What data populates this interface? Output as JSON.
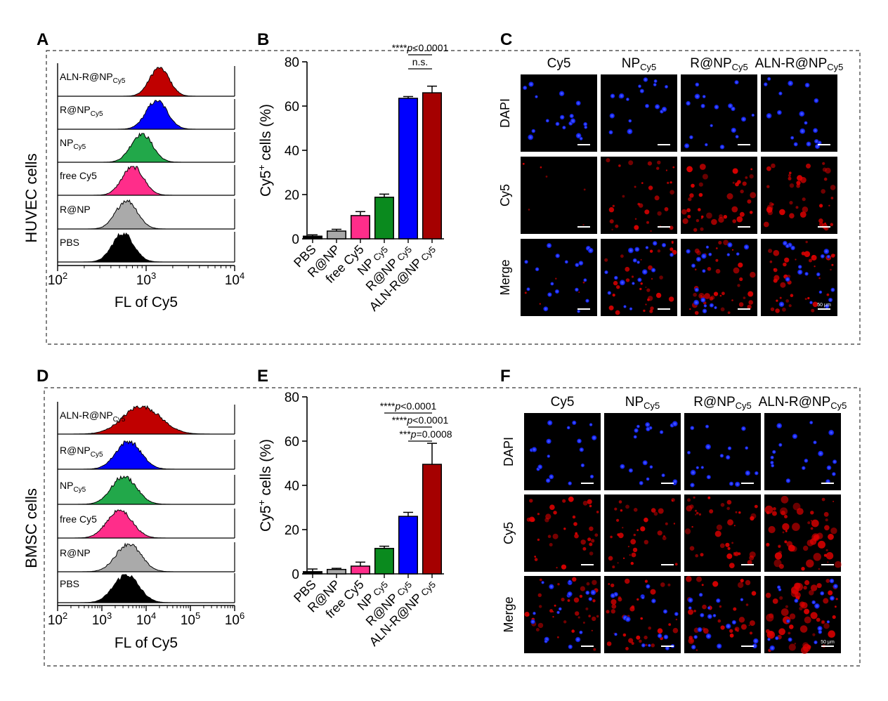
{
  "panel_letters": [
    "A",
    "B",
    "C",
    "D",
    "E",
    "F"
  ],
  "colors": {
    "ALN-R@NP": "#c00000",
    "R@NP_Cy5": "#0000ff",
    "NP_Cy5": "#22a84a",
    "free Cy5": "#ff2d8a",
    "R@NP": "#aaaaaa",
    "PBS": "#000000",
    "bar_ALN": "#a50000",
    "bar_RNPcy5": "#0000ff",
    "bar_NPcy5": "#0a8a1e",
    "bar_free": "#ff2d8a",
    "bar_RNP": "#a8a8a8",
    "bar_PBS": "#000000",
    "dapi": "#1a2cff",
    "cy5": "#e00000"
  },
  "histogram_labels": [
    {
      "main": "ALN-R@NP",
      "sub": "Cy5"
    },
    {
      "main": "R@NP",
      "sub": "Cy5"
    },
    {
      "main": "NP",
      "sub": "Cy5"
    },
    {
      "main": "free Cy5",
      "sub": ""
    },
    {
      "main": "R@NP",
      "sub": ""
    },
    {
      "main": "PBS",
      "sub": ""
    }
  ],
  "micro_cols": [
    {
      "main": "Cy5",
      "sub": ""
    },
    {
      "main": "NP",
      "sub": "Cy5"
    },
    {
      "main": "R@NP",
      "sub": "Cy5"
    },
    {
      "main": "ALN-R@NP",
      "sub": "Cy5"
    }
  ],
  "micro_rows": [
    "DAPI",
    "Cy5",
    "Merge"
  ],
  "scale_label": "50 μm",
  "chart_data": [
    {
      "panel": "A",
      "type": "histogram",
      "cell_label": "HUVEC cells",
      "xlabel": "FL of Cy5",
      "xscale": "log",
      "xlim": [
        100,
        10000
      ],
      "xticks": [
        "10",
        "10",
        "10"
      ],
      "xtick_exp": [
        "2",
        "3",
        "4"
      ],
      "peaks_log10": [
        3.15,
        3.12,
        2.95,
        2.85,
        2.78,
        2.74
      ]
    },
    {
      "panel": "B",
      "type": "bar",
      "ylabel": "Cy5",
      "ylabel_sup": "+",
      "ylabel_rest": " cells (%)",
      "ylim": [
        0,
        80
      ],
      "yticks": [
        "0",
        "20",
        "40",
        "60",
        "80"
      ],
      "categories": [
        "PBS",
        "R@NP",
        "free Cy5",
        "NP",
        "R@NP",
        "ALN-R@NP"
      ],
      "category_subs": [
        "",
        "",
        "",
        "Cy5",
        "Cy5",
        "Cy5"
      ],
      "values": [
        1.2,
        3.5,
        10.5,
        18.8,
        63.5,
        66.0
      ],
      "errors": [
        0.6,
        0.8,
        1.8,
        1.4,
        0.8,
        3.0
      ],
      "annotations": [
        {
          "stars": "****",
          "p": "p",
          "text": "<0.0001",
          "from": 4,
          "to": 5,
          "level": 1
        },
        {
          "stars": "",
          "p": "",
          "text": "n.s.",
          "from": 4,
          "to": 5,
          "level": 0
        }
      ]
    },
    {
      "panel": "D",
      "type": "histogram",
      "cell_label": "BMSC cells",
      "xlabel": "FL of Cy5",
      "xscale": "log",
      "xlim": [
        100,
        1000000
      ],
      "xticks": [
        "10",
        "10",
        "10",
        "10",
        "10"
      ],
      "xtick_exp": [
        "2",
        "3",
        "4",
        "5",
        "6"
      ],
      "peaks_log10": [
        3.9,
        3.6,
        3.5,
        3.4,
        3.6,
        3.55
      ]
    },
    {
      "panel": "E",
      "type": "bar",
      "ylabel": "Cy5",
      "ylabel_sup": "+",
      "ylabel_rest": " cells (%)",
      "ylim": [
        0,
        80
      ],
      "yticks": [
        "0",
        "20",
        "40",
        "60",
        "80"
      ],
      "categories": [
        "PBS",
        "R@NP",
        "free Cy5",
        "NP",
        "R@NP",
        "ALN-R@NP"
      ],
      "category_subs": [
        "",
        "",
        "",
        "Cy5",
        "Cy5",
        "Cy5"
      ],
      "values": [
        1.0,
        2.0,
        3.5,
        11.5,
        26.0,
        49.5
      ],
      "errors": [
        1.2,
        0.5,
        1.8,
        1.0,
        1.8,
        9.5
      ],
      "annotations": [
        {
          "stars": "****",
          "p": "p",
          "text": "<0.0001",
          "from": 3,
          "to": 5,
          "level": 2
        },
        {
          "stars": "****",
          "p": "p",
          "text": "<0.0001",
          "from": 4,
          "to": 5,
          "level": 1
        },
        {
          "stars": "***",
          "p": "p",
          "text": "=0.0008",
          "from": 5,
          "to": 5,
          "level": 0
        }
      ]
    }
  ]
}
